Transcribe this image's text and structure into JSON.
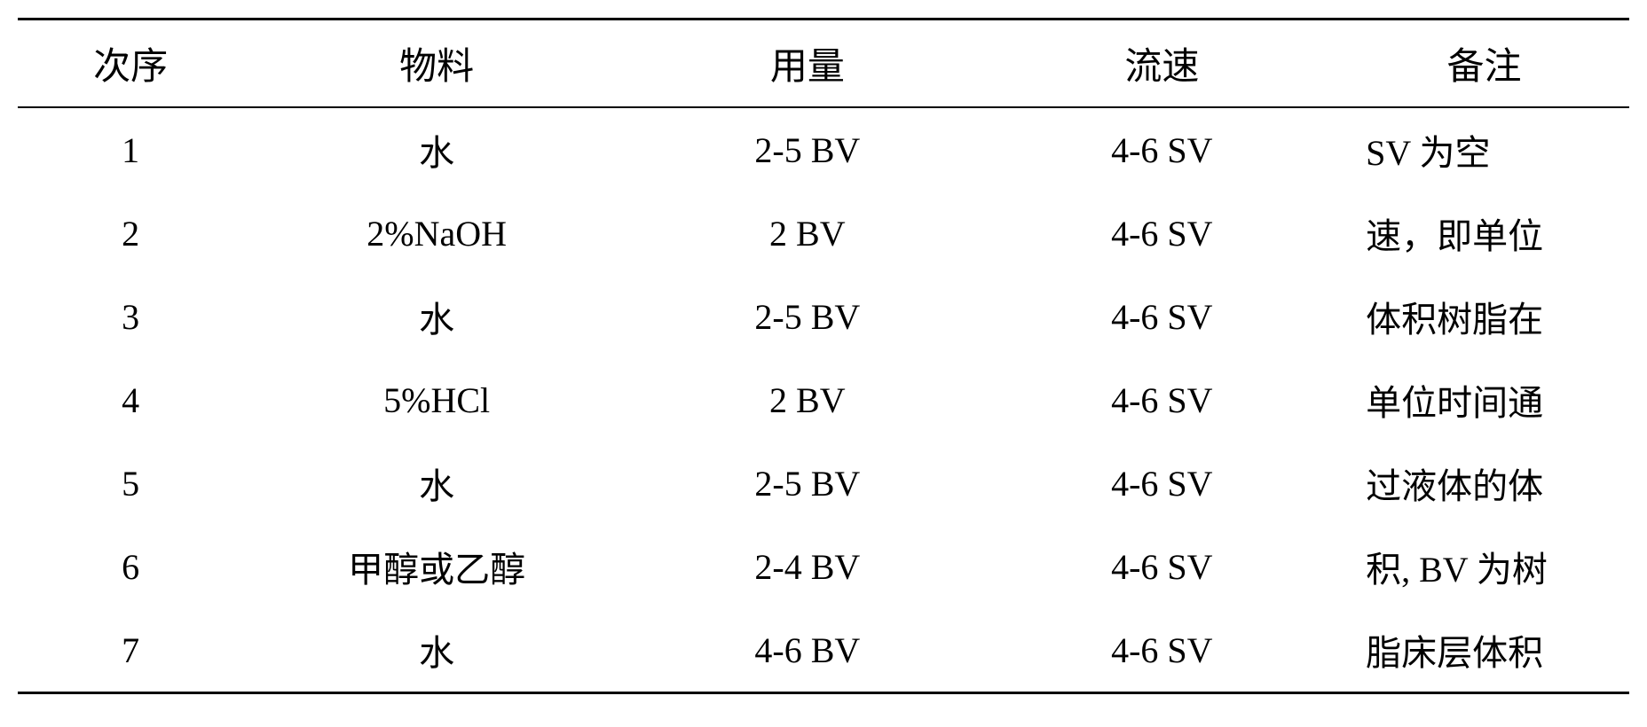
{
  "table": {
    "columns": {
      "seq": "次序",
      "material": "物料",
      "amount": "用量",
      "flow": "流速",
      "note": "备注"
    },
    "rows": [
      {
        "seq": "1",
        "material": "水",
        "amount": "2-5 BV",
        "flow": "4-6 SV",
        "note": "SV  为空"
      },
      {
        "seq": "2",
        "material": "2%NaOH",
        "amount": "2 BV",
        "flow": "4-6 SV",
        "note": "速，即单位"
      },
      {
        "seq": "3",
        "material": "水",
        "amount": "2-5 BV",
        "flow": "4-6 SV",
        "note": "体积树脂在"
      },
      {
        "seq": "4",
        "material": "5%HCl",
        "amount": "2 BV",
        "flow": "4-6 SV",
        "note": "单位时间通"
      },
      {
        "seq": "5",
        "material": "水",
        "amount": "2-5 BV",
        "flow": "4-6 SV",
        "note": "过液体的体"
      },
      {
        "seq": "6",
        "material": "甲醇或乙醇",
        "amount": "2-4 BV",
        "flow": "4-6 SV",
        "note": "积, BV 为树"
      },
      {
        "seq": "7",
        "material": "水",
        "amount": "4-6 BV",
        "flow": "4-6 SV",
        "note": "脂床层体积"
      }
    ],
    "styling": {
      "header_fontsize": 42,
      "cell_fontsize": 40,
      "text_color": "#000000",
      "background_color": "#ffffff",
      "border_color": "#000000",
      "top_border_width": 3,
      "header_bottom_border_width": 2,
      "bottom_border_width": 3,
      "font_family": "serif",
      "column_widths_percent": [
        14,
        24,
        22,
        22,
        18
      ],
      "column_align": [
        "center",
        "center",
        "center",
        "center",
        "left"
      ]
    }
  }
}
